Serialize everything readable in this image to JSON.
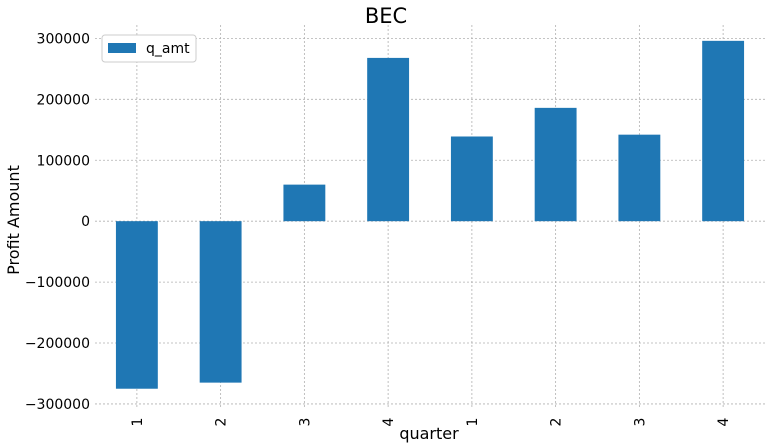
{
  "chart_data": {
    "type": "bar",
    "title": "BEC",
    "xlabel": "quarter",
    "ylabel": "Profit Amount",
    "categories": [
      "1",
      "2",
      "3",
      "4",
      "1",
      "2",
      "3",
      "4"
    ],
    "series": [
      {
        "name": "q_amt",
        "values": [
          -275000,
          -265000,
          60000,
          268000,
          139000,
          186000,
          142000,
          296000
        ],
        "color": "#1f77b4"
      }
    ],
    "ylim": [
      -305000,
      322000
    ],
    "yticks": [
      -300000,
      -200000,
      -100000,
      0,
      100000,
      200000,
      300000
    ],
    "ytick_labels": [
      "−300000",
      "−200000",
      "−100000",
      "0",
      "100000",
      "200000",
      "300000"
    ],
    "grid": true,
    "legend_position": "top-left"
  }
}
